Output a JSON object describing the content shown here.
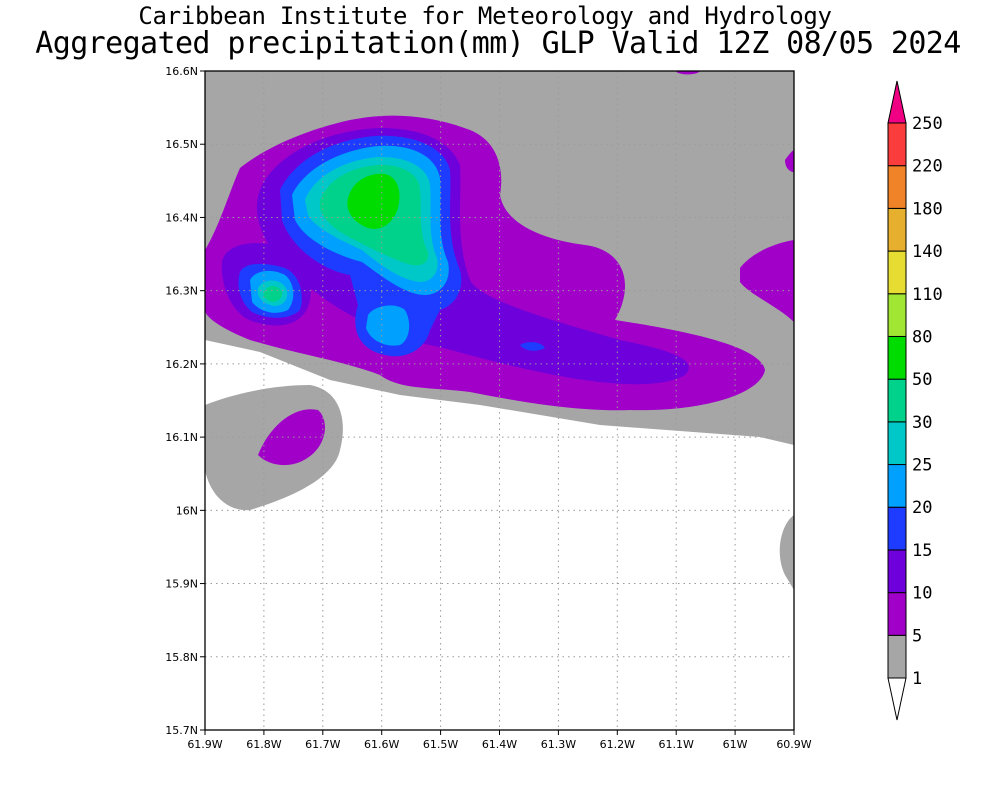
{
  "header": {
    "line1": "Caribbean Institute for Meteorology and Hydrology",
    "line2": "Aggregated precipitation(mm) GLP Valid 12Z 08/05 2024"
  },
  "map": {
    "lon_range": [
      -61.9,
      -60.9
    ],
    "lat_range": [
      15.7,
      16.6
    ],
    "lon_ticks": [
      {
        "value": -61.9,
        "label": "61.9W"
      },
      {
        "value": -61.8,
        "label": "61.8W"
      },
      {
        "value": -61.7,
        "label": "61.7W"
      },
      {
        "value": -61.6,
        "label": "61.6W"
      },
      {
        "value": -61.5,
        "label": "61.5W"
      },
      {
        "value": -61.4,
        "label": "61.4W"
      },
      {
        "value": -61.3,
        "label": "61.3W"
      },
      {
        "value": -61.2,
        "label": "61.2W"
      },
      {
        "value": -61.1,
        "label": "61.1W"
      },
      {
        "value": -61.0,
        "label": "61W"
      },
      {
        "value": -60.9,
        "label": "60.9W"
      }
    ],
    "lat_ticks": [
      {
        "value": 16.6,
        "label": "16.6N"
      },
      {
        "value": 16.5,
        "label": "16.5N"
      },
      {
        "value": 16.4,
        "label": "16.4N"
      },
      {
        "value": 16.3,
        "label": "16.3N"
      },
      {
        "value": 16.2,
        "label": "16.2N"
      },
      {
        "value": 16.1,
        "label": "16.1N"
      },
      {
        "value": 16.0,
        "label": "16N"
      },
      {
        "value": 15.9,
        "label": "15.9N"
      },
      {
        "value": 15.8,
        "label": "15.8N"
      },
      {
        "value": 15.7,
        "label": "15.7N"
      }
    ],
    "grid": true,
    "grid_color": "#9a9a9a"
  },
  "colorbar": {
    "levels": [
      "1",
      "5",
      "10",
      "15",
      "20",
      "25",
      "30",
      "50",
      "80",
      "110",
      "140",
      "180",
      "220",
      "250"
    ],
    "colors": [
      "#a6a6a6",
      "#a000c8",
      "#6e00dc",
      "#1e3cff",
      "#00a0ff",
      "#00c8c8",
      "#00d28c",
      "#00dc00",
      "#a0e632",
      "#e6dc32",
      "#e6af2d",
      "#f08228",
      "#fa3c3c",
      "#f00082"
    ],
    "below_color": "#ffffff"
  }
}
